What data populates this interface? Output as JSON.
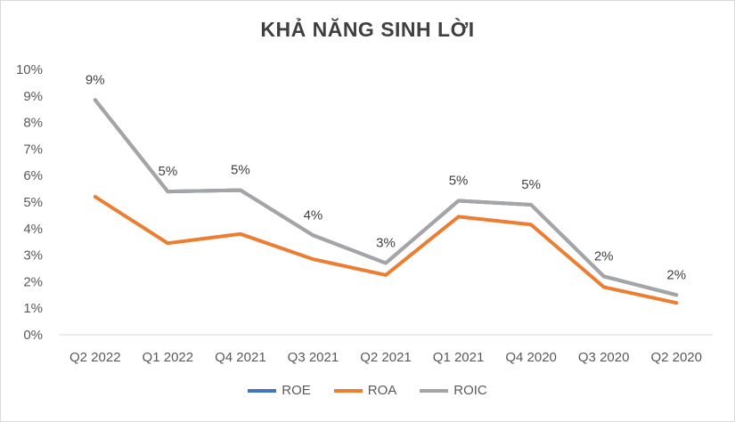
{
  "chart_data": {
    "type": "line",
    "title": "KHẢ NĂNG SINH LỜI",
    "categories": [
      "Q2 2022",
      "Q1 2022",
      "Q4 2021",
      "Q3 2021",
      "Q2 2021",
      "Q1 2021",
      "Q4 2020",
      "Q3 2020",
      "Q2 2020"
    ],
    "y_ticks": [
      "0%",
      "1%",
      "2%",
      "3%",
      "4%",
      "5%",
      "6%",
      "7%",
      "8%",
      "9%",
      "10%"
    ],
    "ylim": [
      0,
      10
    ],
    "grid": false,
    "legend_position": "bottom",
    "series": [
      {
        "name": "ROE",
        "color": "#4472c4",
        "values": [
          8.85,
          5.4,
          5.45,
          3.75,
          2.7,
          5.05,
          4.9,
          2.2,
          1.5
        ]
      },
      {
        "name": "ROA",
        "color": "#ed7d31",
        "values": [
          5.2,
          3.45,
          3.8,
          2.85,
          2.25,
          4.45,
          4.15,
          1.8,
          1.2
        ]
      },
      {
        "name": "ROIC",
        "color": "#a5a5a5",
        "values": [
          8.85,
          5.4,
          5.45,
          3.75,
          2.7,
          5.05,
          4.9,
          2.2,
          1.5
        ]
      }
    ],
    "data_labels": [
      "9%",
      "5%",
      "5%",
      "4%",
      "3%",
      "5%",
      "5%",
      "2%",
      "2%"
    ]
  }
}
